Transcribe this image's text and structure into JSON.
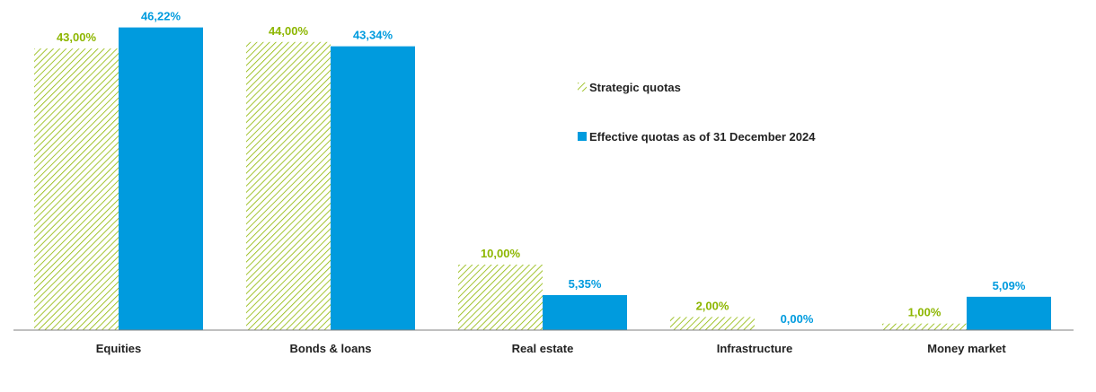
{
  "chart_data": {
    "type": "bar",
    "categories": [
      "Equities",
      "Bonds & loans",
      "Real estate",
      "Infrastructure",
      "Money market"
    ],
    "series": [
      {
        "name": "Strategic quotas",
        "values": [
          43.0,
          44.0,
          10.0,
          2.0,
          1.0
        ],
        "labels": [
          "43,00%",
          "44,00%",
          "10,00%",
          "2,00%",
          "1,00%"
        ],
        "color": "#8DB600",
        "pattern": "diagonal-hatch"
      },
      {
        "name": "Effective quotas as of 31 December 2024",
        "values": [
          46.22,
          43.34,
          5.35,
          0.0,
          5.09
        ],
        "labels": [
          "46,22%",
          "43,34%",
          "5,35%",
          "0,00%",
          "5,09%"
        ],
        "color": "#009BDE",
        "pattern": "solid"
      }
    ],
    "ylim": [
      0,
      50
    ],
    "grid": false,
    "legend_position": "right"
  }
}
